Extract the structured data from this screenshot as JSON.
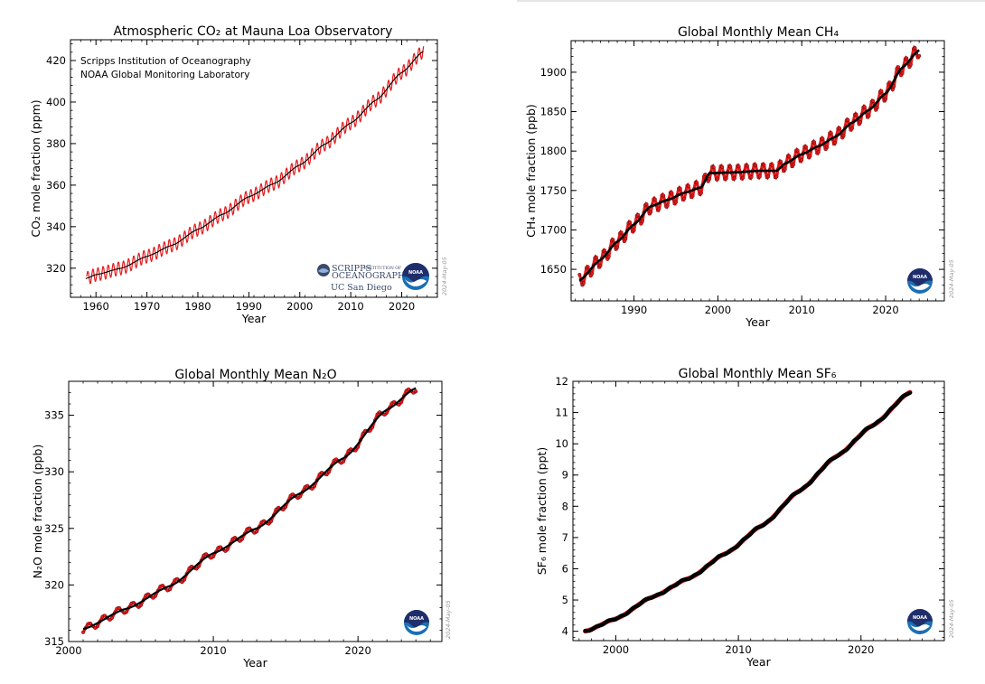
{
  "colors": {
    "monthly": "#e41a1c",
    "trend": "#000000",
    "noaa_blue": "#1a6fb5",
    "noaa_navy": "#1f2e6b"
  },
  "date_stamp": "2024-May-05",
  "chart_data": [
    {
      "type": "line",
      "title": "Atmospheric CO₂ at Mauna Loa Observatory",
      "xlabel": "Year",
      "ylabel": "CO₂ mole fraction (ppm)",
      "xlim": [
        1955,
        2027
      ],
      "ylim": [
        306,
        430
      ],
      "xticks": [
        "1960",
        "1970",
        "1980",
        "1990",
        "2000",
        "2010",
        "2020"
      ],
      "yticks": [
        "320",
        "340",
        "360",
        "380",
        "400",
        "420"
      ],
      "annotations": [
        "Scripps Institution of Oceanography",
        "NOAA Global Monitoring Laboratory"
      ],
      "logos": [
        "SCRIPPS",
        "OCEANOGRAPHY",
        "INSTITUTION OF",
        "UC San Diego",
        "NOAA"
      ],
      "series": [
        {
          "name": "",
          "style": "monthly",
          "x_start": 1958.2,
          "x_end": 2024.3,
          "seasonal_amplitude": 3.2
        },
        {
          "name": "",
          "style": "trend",
          "x": [
            1958,
            1960,
            1965,
            1970,
            1975,
            1980,
            1985,
            1990,
            1995,
            2000,
            2005,
            2010,
            2015,
            2020,
            2024.3
          ],
          "y": [
            315.0,
            316.9,
            320.0,
            325.7,
            331.1,
            338.7,
            346.1,
            354.4,
            360.8,
            369.7,
            379.8,
            389.9,
            401.0,
            414.2,
            424.5
          ]
        }
      ]
    },
    {
      "type": "line",
      "title": "Global Monthly Mean CH₄",
      "xlabel": "Year",
      "ylabel": "CH₄ mole fraction (ppb)",
      "xlim": [
        1982.5,
        2027
      ],
      "ylim": [
        1610,
        1940
      ],
      "xticks": [
        "1990",
        "2000",
        "2010",
        "2020"
      ],
      "yticks": [
        "1650",
        "1700",
        "1750",
        "1800",
        "1850",
        "1900"
      ],
      "logos": [
        "NOAA"
      ],
      "series": [
        {
          "name": "",
          "style": "monthly",
          "x_start": 1983.5,
          "x_end": 2024.0,
          "seasonal_amplitude": 9
        },
        {
          "name": "",
          "style": "trend",
          "x": [
            1983.5,
            1986,
            1988,
            1990,
            1992,
            1994,
            1996,
            1998,
            1999,
            2002,
            2005,
            2007,
            2008,
            2010,
            2012,
            2014,
            2016,
            2018,
            2020,
            2022,
            2024
          ],
          "y": [
            1636,
            1662,
            1685,
            1707,
            1730,
            1738,
            1747,
            1754,
            1772,
            1773,
            1775,
            1775,
            1784,
            1796,
            1806,
            1818,
            1836,
            1852,
            1873,
            1906,
            1928
          ]
        }
      ]
    },
    {
      "type": "line",
      "title": "Global Monthly Mean N₂O",
      "xlabel": "Year",
      "ylabel": "N₂O mole fraction (ppb)",
      "xlim": [
        2000,
        2025.8
      ],
      "ylim": [
        315,
        338
      ],
      "xticks": [
        "2000",
        "2010",
        "2020"
      ],
      "yticks": [
        "315",
        "320",
        "325",
        "330",
        "335"
      ],
      "logos": [
        "NOAA"
      ],
      "series": [
        {
          "name": "",
          "style": "monthly",
          "x_start": 2001.0,
          "x_end": 2024.0,
          "seasonal_amplitude": 0.35
        },
        {
          "name": "",
          "style": "trend",
          "x": [
            2001,
            2004,
            2007,
            2010,
            2013,
            2016,
            2019,
            2022,
            2024
          ],
          "y": [
            316.1,
            317.9,
            319.9,
            322.8,
            325.0,
            328.1,
            331.2,
            335.5,
            337.4
          ]
        }
      ]
    },
    {
      "type": "line",
      "title": "Global Monthly Mean SF₆",
      "xlabel": "Year",
      "ylabel": "SF₆ mole fraction (ppt)",
      "xlim": [
        1996.5,
        2026.8
      ],
      "ylim": [
        3.7,
        12
      ],
      "xticks": [
        "2000",
        "2010",
        "2020"
      ],
      "yticks": [
        "4",
        "5",
        "6",
        "7",
        "8",
        "9",
        "10",
        "11",
        "12"
      ],
      "logos": [
        "NOAA"
      ],
      "series": [
        {
          "name": "",
          "style": "monthly",
          "x_start": 1997.5,
          "x_end": 2024.0,
          "seasonal_amplitude": 0.02
        },
        {
          "name": "",
          "style": "trend",
          "x": [
            1997.5,
            2000,
            2003,
            2006,
            2009,
            2012,
            2015,
            2018,
            2021,
            2024
          ],
          "y": [
            4.0,
            4.4,
            5.1,
            5.7,
            6.5,
            7.4,
            8.5,
            9.6,
            10.6,
            11.65
          ]
        }
      ]
    }
  ]
}
